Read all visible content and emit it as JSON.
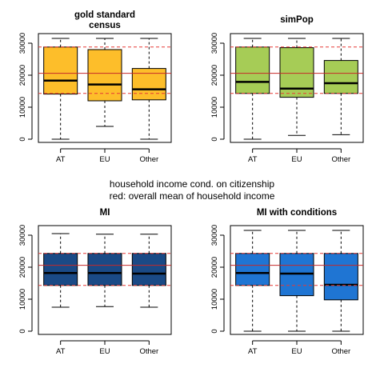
{
  "caption": {
    "line1": "household income cond. on citizenship",
    "line2": "red: overall mean of household income"
  },
  "colors": {
    "mean_line": "#c62828",
    "band_line": "#e53935"
  },
  "chart_data": [
    {
      "type": "boxplot",
      "title_lines": [
        "gold standard",
        "census"
      ],
      "categories": [
        "AT",
        "EU",
        "Other"
      ],
      "fill": "#FDBE2A",
      "ylim": [
        -1000,
        33000
      ],
      "yticks": [
        0,
        10000,
        20000,
        30000
      ],
      "ytick_labels": [
        "0",
        "10000",
        "20000",
        "30000"
      ],
      "reference_lines": {
        "mean": 20600,
        "lower": 14300,
        "upper": 28800
      },
      "boxes": [
        {
          "whisker_low": 0,
          "q1": 14100,
          "median": 18300,
          "q3": 28800,
          "whisker_high": 31500
        },
        {
          "whisker_low": 4000,
          "q1": 12000,
          "median": 17100,
          "q3": 28000,
          "whisker_high": 31500
        },
        {
          "whisker_low": 0,
          "q1": 12300,
          "median": 15600,
          "q3": 22100,
          "whisker_high": 31500
        }
      ]
    },
    {
      "type": "boxplot",
      "title_lines": [
        "simPop"
      ],
      "categories": [
        "AT",
        "EU",
        "Other"
      ],
      "fill": "#A6CC56",
      "ylim": [
        -1000,
        33000
      ],
      "yticks": [
        0,
        10000,
        20000,
        30000
      ],
      "ytick_labels": [
        "0",
        "10000",
        "20000",
        "30000"
      ],
      "reference_lines": {
        "mean": 20600,
        "lower": 14300,
        "upper": 28800
      },
      "boxes": [
        {
          "whisker_low": 0,
          "q1": 14300,
          "median": 17900,
          "q3": 28800,
          "whisker_high": 31500
        },
        {
          "whisker_low": 1200,
          "q1": 13100,
          "median": 15800,
          "q3": 28600,
          "whisker_high": 31500
        },
        {
          "whisker_low": 1400,
          "q1": 14300,
          "median": 17500,
          "q3": 24600,
          "whisker_high": 31500
        }
      ]
    },
    {
      "type": "boxplot",
      "title_lines": [
        "MI"
      ],
      "categories": [
        "AT",
        "EU",
        "Other"
      ],
      "fill": "#1A4A86",
      "ylim": [
        -1000,
        33000
      ],
      "yticks": [
        0,
        10000,
        20000,
        30000
      ],
      "ytick_labels": [
        "0",
        "10000",
        "20000",
        "30000"
      ],
      "reference_lines": {
        "mean": 20600,
        "lower": 14300,
        "upper": 24300
      },
      "boxes": [
        {
          "whisker_low": 7500,
          "q1": 14300,
          "median": 18200,
          "q3": 24300,
          "whisker_high": 30500
        },
        {
          "whisker_low": 7700,
          "q1": 14300,
          "median": 18200,
          "q3": 24300,
          "whisker_high": 30300
        },
        {
          "whisker_low": 7500,
          "q1": 14300,
          "median": 18000,
          "q3": 24300,
          "whisker_high": 30300
        }
      ]
    },
    {
      "type": "boxplot",
      "title_lines": [
        "MI with conditions"
      ],
      "categories": [
        "AT",
        "EU",
        "Other"
      ],
      "fill": "#1F75D3",
      "ylim": [
        -1000,
        33000
      ],
      "yticks": [
        0,
        10000,
        20000,
        30000
      ],
      "ytick_labels": [
        "0",
        "10000",
        "20000",
        "30000"
      ],
      "reference_lines": {
        "mean": 20600,
        "lower": 14300,
        "upper": 24300
      },
      "boxes": [
        {
          "whisker_low": 0,
          "q1": 14300,
          "median": 18200,
          "q3": 24300,
          "whisker_high": 31500
        },
        {
          "whisker_low": 0,
          "q1": 11100,
          "median": 18000,
          "q3": 24300,
          "whisker_high": 31500
        },
        {
          "whisker_low": 0,
          "q1": 9800,
          "median": 14500,
          "q3": 24300,
          "whisker_high": 31500
        }
      ]
    }
  ]
}
